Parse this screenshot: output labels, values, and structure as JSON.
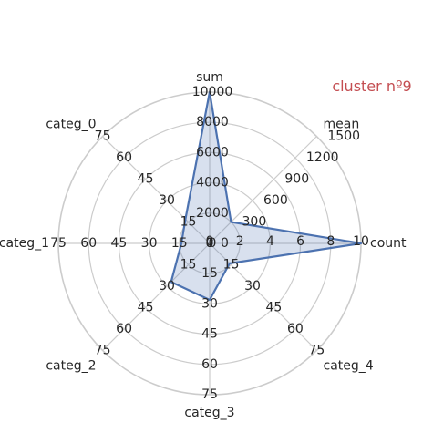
{
  "chart_data": {
    "type": "radar",
    "annotation": "cluster nº9",
    "annotation_color": "#c44e52",
    "series_color": "#4c72b0",
    "fill_color": "#4c72b0",
    "grid_color": "#cccccc",
    "grid": true,
    "axes": [
      {
        "name": "count",
        "max": 10,
        "ticks": [
          "0",
          "2",
          "4",
          "6",
          "8",
          "10"
        ],
        "value": 10
      },
      {
        "name": "mean",
        "max": 1500,
        "ticks": [
          "0",
          "300",
          "600",
          "900",
          "1200",
          "1500"
        ],
        "value": 300
      },
      {
        "name": "sum",
        "max": 10000,
        "ticks": [
          "0",
          "2000",
          "4000",
          "6000",
          "8000",
          "10000"
        ],
        "value": 10000
      },
      {
        "name": "categ_0",
        "max": 75,
        "ticks": [
          "0",
          "15",
          "30",
          "45",
          "60",
          "75"
        ],
        "value": 17
      },
      {
        "name": "categ_1",
        "max": 75,
        "ticks": [
          "0",
          "15",
          "30",
          "45",
          "60",
          "75"
        ],
        "value": 14
      },
      {
        "name": "categ_2",
        "max": 75,
        "ticks": [
          "0",
          "15",
          "30",
          "45",
          "60",
          "75"
        ],
        "value": 27
      },
      {
        "name": "categ_3",
        "max": 75,
        "ticks": [
          "0",
          "15",
          "30",
          "45",
          "60",
          "75"
        ],
        "value": 28
      },
      {
        "name": "categ_4",
        "max": 75,
        "ticks": [
          "0",
          "15",
          "30",
          "45",
          "60",
          "75"
        ],
        "value": 14
      },
      {
        "name": "count",
        "max": 10,
        "ticks": [],
        "value": 10,
        "closing": true
      }
    ]
  }
}
